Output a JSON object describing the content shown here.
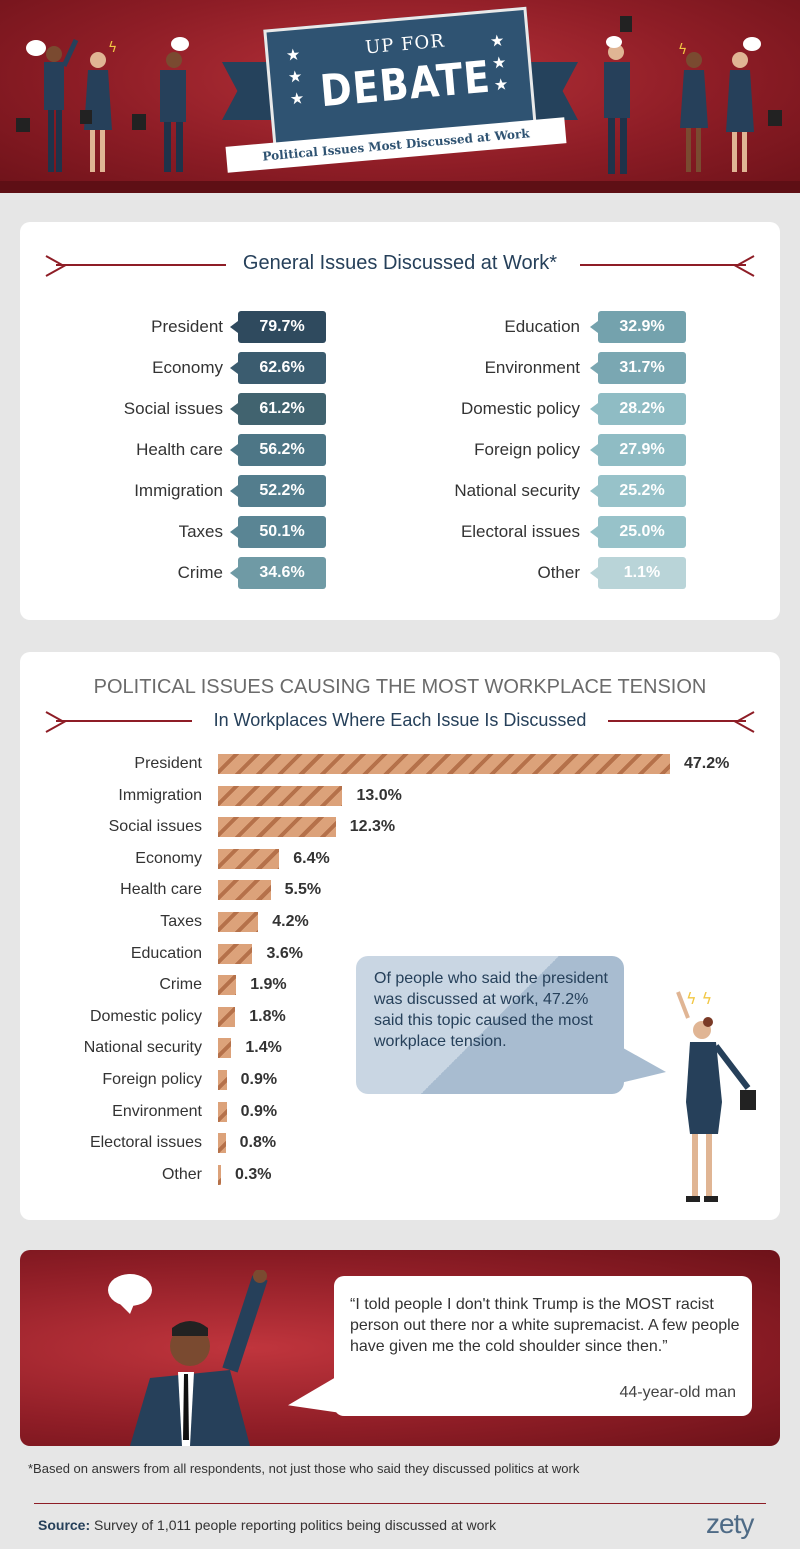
{
  "header": {
    "banner_sub": "UP FOR",
    "banner_main": "DEBATE",
    "tagline": "Political Issues Most Discussed at Work"
  },
  "general": {
    "title": "General Issues Discussed at Work*",
    "left": [
      {
        "label": "President",
        "value": "79.7%",
        "color": "#2f4a5e"
      },
      {
        "label": "Economy",
        "value": "62.6%",
        "color": "#3b5c6f"
      },
      {
        "label": "Social issues",
        "value": "61.2%",
        "color": "#41636f"
      },
      {
        "label": "Health care",
        "value": "56.2%",
        "color": "#4d7686"
      },
      {
        "label": "Immigration",
        "value": "52.2%",
        "color": "#537d8d"
      },
      {
        "label": "Taxes",
        "value": "50.1%",
        "color": "#5a8594"
      },
      {
        "label": "Crime",
        "value": "34.6%",
        "color": "#6f9aa5"
      }
    ],
    "right": [
      {
        "label": "Education",
        "value": "32.9%",
        "color": "#74a2ad"
      },
      {
        "label": "Environment",
        "value": "31.7%",
        "color": "#7aa7b2"
      },
      {
        "label": "Domestic policy",
        "value": "28.2%",
        "color": "#8fbcc4"
      },
      {
        "label": "Foreign policy",
        "value": "27.9%",
        "color": "#8fbcc4"
      },
      {
        "label": "National security",
        "value": "25.2%",
        "color": "#97c2c9"
      },
      {
        "label": "Electoral issues",
        "value": "25.0%",
        "color": "#97c2c9"
      },
      {
        "label": "Other",
        "value": "1.1%",
        "color": "#b9d4d8"
      }
    ]
  },
  "tension": {
    "title": "POLITICAL ISSUES CAUSING THE MOST WORKPLACE TENSION",
    "subtitle": "In Workplaces Where Each Issue Is Discussed",
    "callout": "Of people who said the president was discussed at work, 47.2% said this topic caused the most workplace tension."
  },
  "chart_data": {
    "type": "bar",
    "title": "POLITICAL ISSUES CAUSING THE MOST WORKPLACE TENSION",
    "subtitle": "In Workplaces Where Each Issue Is Discussed",
    "categories": [
      "President",
      "Immigration",
      "Social issues",
      "Economy",
      "Health care",
      "Taxes",
      "Education",
      "Crime",
      "Domestic policy",
      "National security",
      "Foreign policy",
      "Environment",
      "Electoral issues",
      "Other"
    ],
    "values": [
      47.2,
      13.0,
      12.3,
      6.4,
      5.5,
      4.2,
      3.6,
      1.9,
      1.8,
      1.4,
      0.9,
      0.9,
      0.8,
      0.3
    ],
    "value_labels": [
      "47.2%",
      "13.0%",
      "12.3%",
      "6.4%",
      "5.5%",
      "4.2%",
      "3.6%",
      "1.9%",
      "1.8%",
      "1.4%",
      "0.9%",
      "0.9%",
      "0.8%",
      "0.3%"
    ],
    "orientation": "horizontal",
    "xlim": [
      0,
      47.2
    ]
  },
  "quote": {
    "text": "“I told people I don't think Trump is the MOST racist person out there nor a white supremacist. A few people have given me the cold shoulder since then.”",
    "attribution": "44-year-old man"
  },
  "footnote": "*Based on answers from all respondents, not just those who said they discussed politics at work",
  "source": {
    "label": "Source:",
    "text": "Survey of 1,011 people reporting politics being discussed at work"
  },
  "logo": "zety"
}
